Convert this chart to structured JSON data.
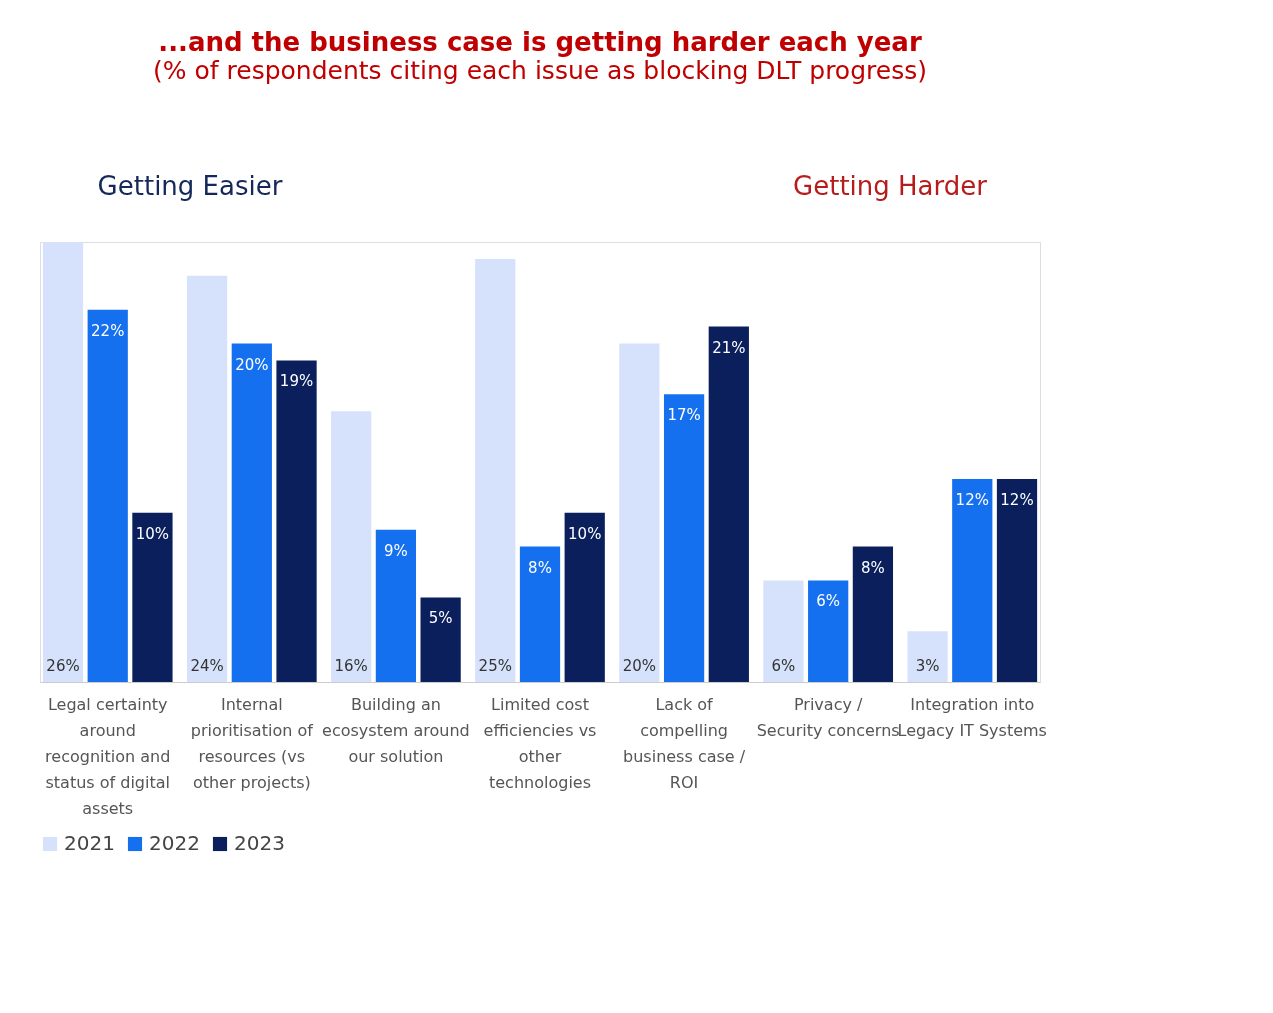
{
  "chart_data": {
    "type": "bar",
    "title": "...and the business case is getting harder each year",
    "subtitle": "(% of respondents citing each issue as blocking DLT progress)",
    "categories": [
      "Legal certainty around recognition and status of digital assets",
      "Internal prioritisation of resources (vs other projects)",
      "Building an ecosystem around our solution",
      "Limited cost efficiencies vs other technologies",
      "Lack of compelling business case / ROI",
      "Privacy / Security concerns",
      "Integration into Legacy IT Systems"
    ],
    "series": [
      {
        "name": "2021",
        "color": "#d6e2fb",
        "values": [
          26,
          24,
          16,
          25,
          20,
          6,
          3
        ],
        "value_labels": [
          "26%",
          "24%",
          "16%",
          "25%",
          "20%",
          "6%",
          "3%"
        ]
      },
      {
        "name": "2022",
        "color": "#1570ef",
        "values": [
          22,
          20,
          9,
          8,
          17,
          6,
          12
        ],
        "value_labels": [
          "22%",
          "20%",
          "9%",
          "8%",
          "17%",
          "6%",
          "12%"
        ]
      },
      {
        "name": "2023",
        "color": "#0a1f5c",
        "values": [
          10,
          19,
          5,
          10,
          21,
          8,
          12
        ],
        "value_labels": [
          "10%",
          "19%",
          "5%",
          "10%",
          "21%",
          "8%",
          "12%"
        ]
      }
    ],
    "annotations": [
      "Getting Easier",
      "Getting Harder"
    ],
    "legend": "bottom",
    "grid": false
  }
}
